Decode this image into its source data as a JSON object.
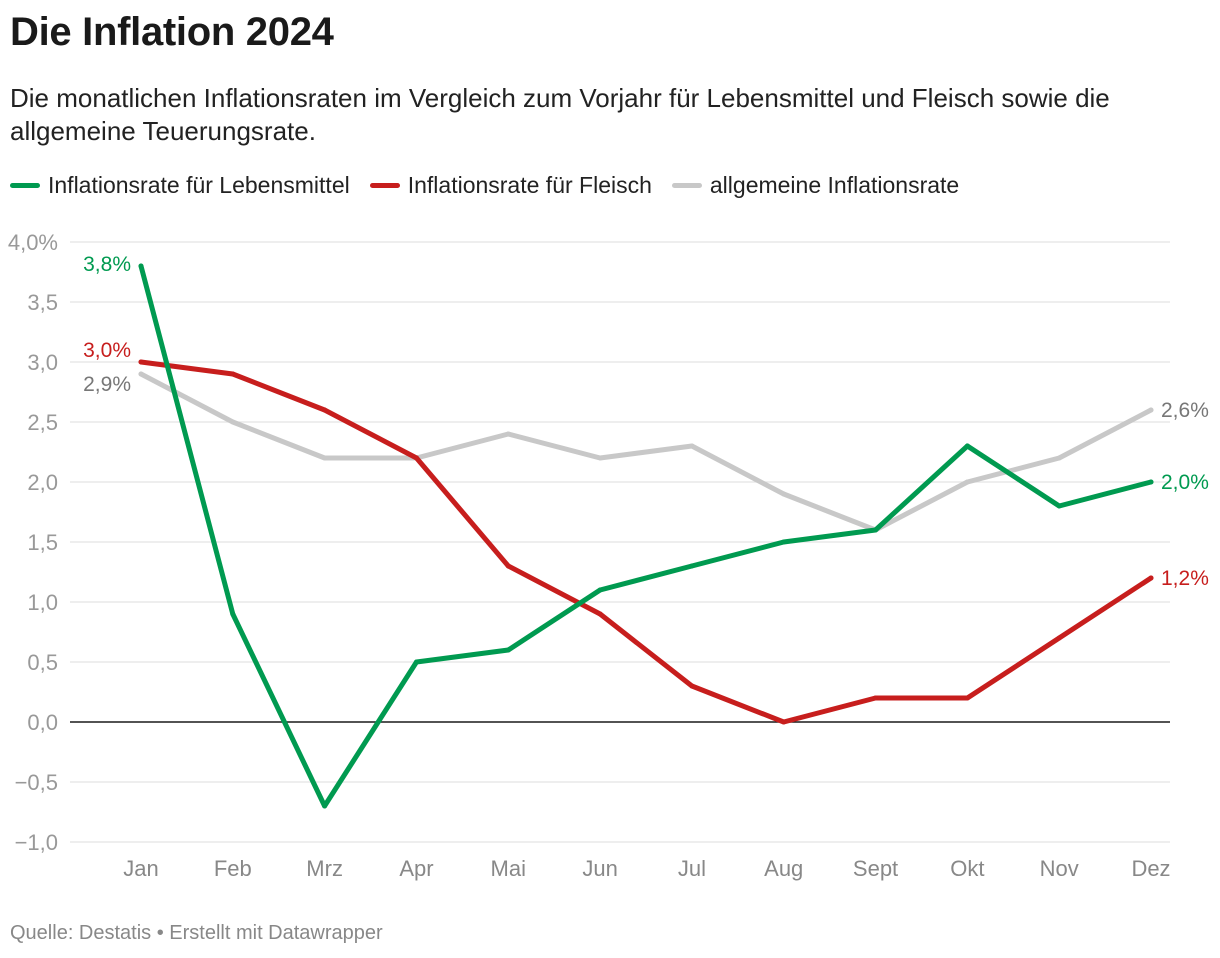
{
  "header": {
    "title": "Die Inflation 2024",
    "subtitle": "Die monatlichen Inflationsraten im Vergleich zum Vorjahr für Lebensmittel und Fleisch sowie die allgemeine Teuerungsrate."
  },
  "footer": {
    "source": "Quelle: Destatis • Erstellt mit Datawrapper"
  },
  "chart_data": {
    "type": "line",
    "title": "Die Inflation 2024",
    "categories": [
      "Jan",
      "Feb",
      "Mrz",
      "Apr",
      "Mai",
      "Jun",
      "Jul",
      "Aug",
      "Sept",
      "Okt",
      "Nov",
      "Dez"
    ],
    "ylim": [
      -1.0,
      4.0
    ],
    "yticks": [
      4.0,
      3.5,
      3.0,
      2.5,
      2.0,
      1.5,
      1.0,
      0.5,
      0.0,
      -0.5,
      -1.0
    ],
    "ytick_labels": [
      "4,0%",
      "3,5",
      "3,0",
      "2,5",
      "2,0",
      "1,5",
      "1,0",
      "0,5",
      "0,0",
      "−0,5",
      "−1,0"
    ],
    "grid": true,
    "legend_position": "top-left",
    "series": [
      {
        "name": "Inflationsrate für Lebensmittel",
        "color": "#009a50",
        "values": [
          3.8,
          0.9,
          -0.7,
          0.5,
          0.6,
          1.1,
          1.3,
          1.5,
          1.6,
          2.3,
          1.8,
          2.0
        ],
        "start_label": "3,8%",
        "end_label": "2,0%"
      },
      {
        "name": "Inflationsrate für Fleisch",
        "color": "#c71e1d",
        "values": [
          3.0,
          2.9,
          2.6,
          2.2,
          1.3,
          0.9,
          0.3,
          0.0,
          0.2,
          0.2,
          0.7,
          1.2
        ],
        "start_label": "3,0%",
        "end_label": "1,2%"
      },
      {
        "name": "allgemeine Inflationsrate",
        "color": "#c8c8c8",
        "values": [
          2.9,
          2.5,
          2.2,
          2.2,
          2.4,
          2.2,
          2.3,
          1.9,
          1.6,
          2.0,
          2.2,
          2.6
        ],
        "start_label": "2,9%",
        "end_label": "2,6%"
      }
    ]
  }
}
